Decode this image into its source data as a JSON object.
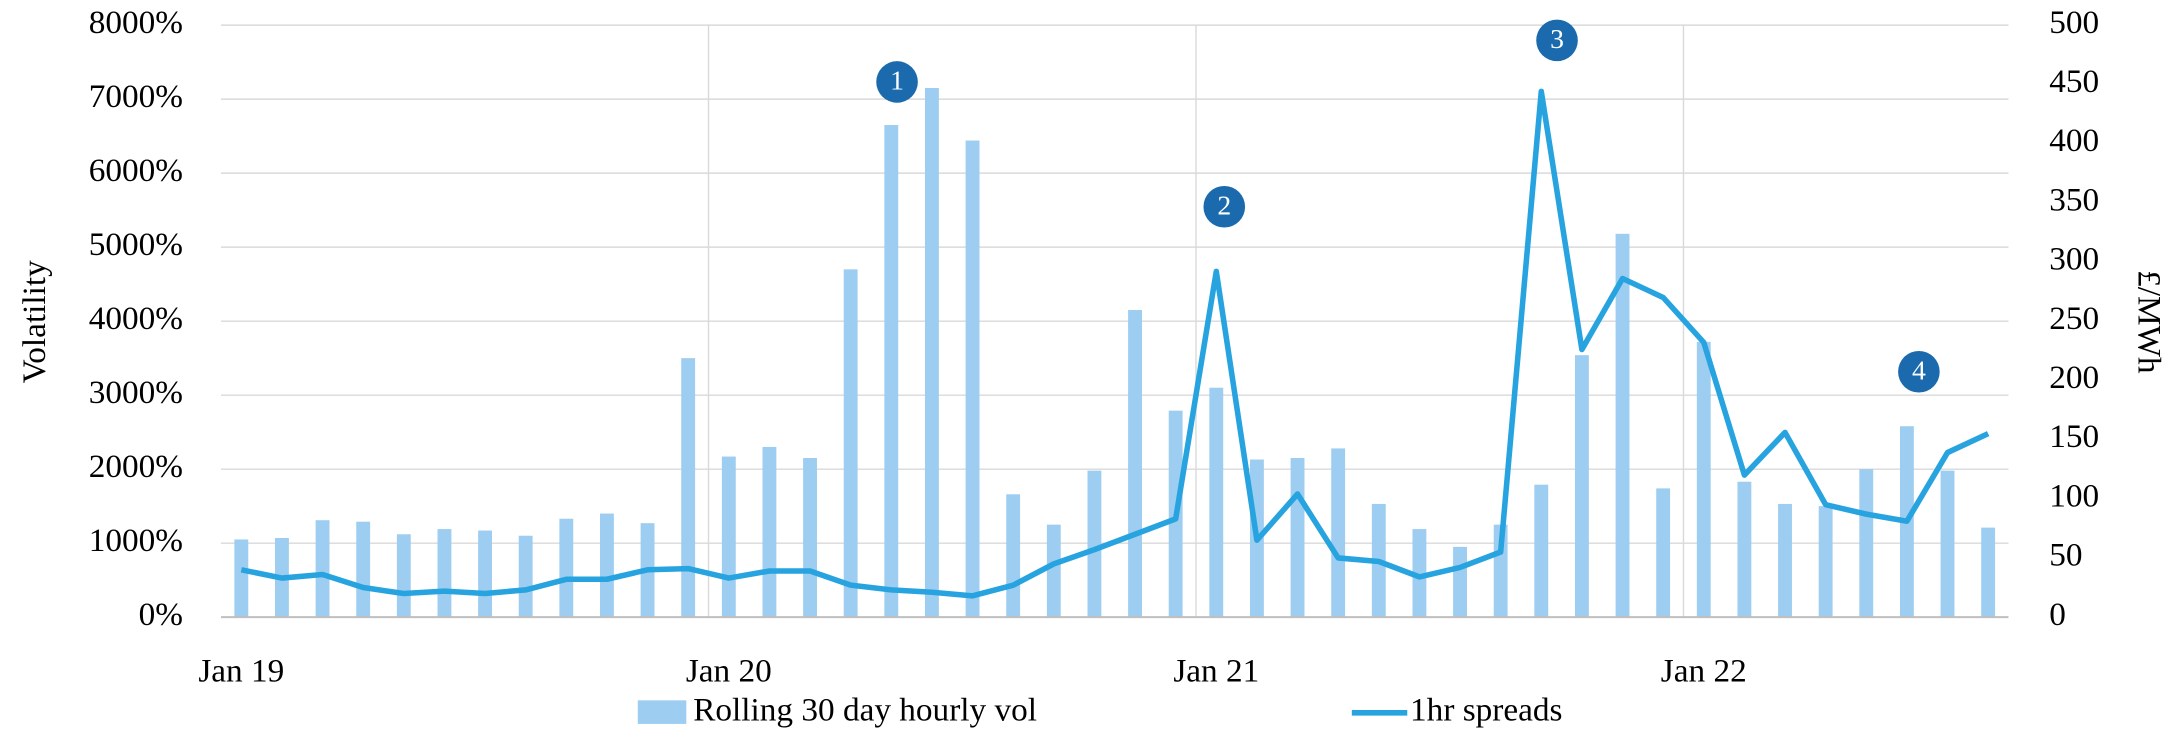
{
  "chart_data": {
    "type": "bar_line",
    "y_label": "Volatility",
    "y2_label": "£/MWh",
    "categories": [
      "Jan 19",
      null,
      null,
      null,
      null,
      null,
      null,
      null,
      null,
      null,
      null,
      null,
      "Jan 20",
      null,
      null,
      null,
      null,
      null,
      null,
      null,
      null,
      null,
      null,
      null,
      "Jan 21",
      null,
      null,
      null,
      null,
      null,
      null,
      null,
      null,
      null,
      null,
      null,
      "Jan 22",
      null,
      null,
      null,
      null,
      null,
      null,
      null
    ],
    "series": [
      {
        "name": "Rolling 30 day hourly vol",
        "type": "bar",
        "axis": "y",
        "color": "#9dcdf0",
        "values": [
          1050,
          1070,
          1310,
          1290,
          1120,
          1190,
          1170,
          1100,
          1330,
          1400,
          1270,
          3500,
          2170,
          2300,
          2150,
          4700,
          6650,
          7150,
          6440,
          1660,
          1250,
          1980,
          4150,
          2790,
          3100,
          2130,
          2150,
          2280,
          1530,
          1190,
          950,
          1250,
          1790,
          3540,
          5180,
          1740,
          3720,
          1830,
          1530,
          1500,
          2000,
          2580,
          1980,
          1210
        ]
      },
      {
        "name": "1hr spreads",
        "type": "line",
        "axis": "y2",
        "color": "#27a3e0",
        "values": [
          40,
          33,
          36,
          25,
          20,
          22,
          20,
          23,
          32,
          32,
          40,
          41,
          33,
          39,
          39,
          27,
          23,
          21,
          18,
          27,
          45,
          57,
          70,
          83,
          292,
          65,
          104,
          50,
          47,
          34,
          42,
          55,
          444,
          226,
          286,
          270,
          232,
          120,
          156,
          95,
          87,
          81,
          139,
          155
        ]
      }
    ],
    "ylim": [
      0,
      8000
    ],
    "yticks": [
      {
        "value": 0,
        "label": "0%"
      },
      {
        "value": 1000,
        "label": "1000%"
      },
      {
        "value": 2000,
        "label": "2000%"
      },
      {
        "value": 3000,
        "label": "3000%"
      },
      {
        "value": 4000,
        "label": "4000%"
      },
      {
        "value": 5000,
        "label": "5000%"
      },
      {
        "value": 6000,
        "label": "6000%"
      },
      {
        "value": 7000,
        "label": "7000%"
      },
      {
        "value": 8000,
        "label": "8000%"
      }
    ],
    "y2lim": [
      0,
      500
    ],
    "y2ticks": [
      0,
      50,
      100,
      150,
      200,
      250,
      300,
      350,
      400,
      450,
      500
    ],
    "grid": true,
    "legend": "bottom",
    "annotations": [
      "1",
      "2",
      "3",
      "4"
    ]
  }
}
